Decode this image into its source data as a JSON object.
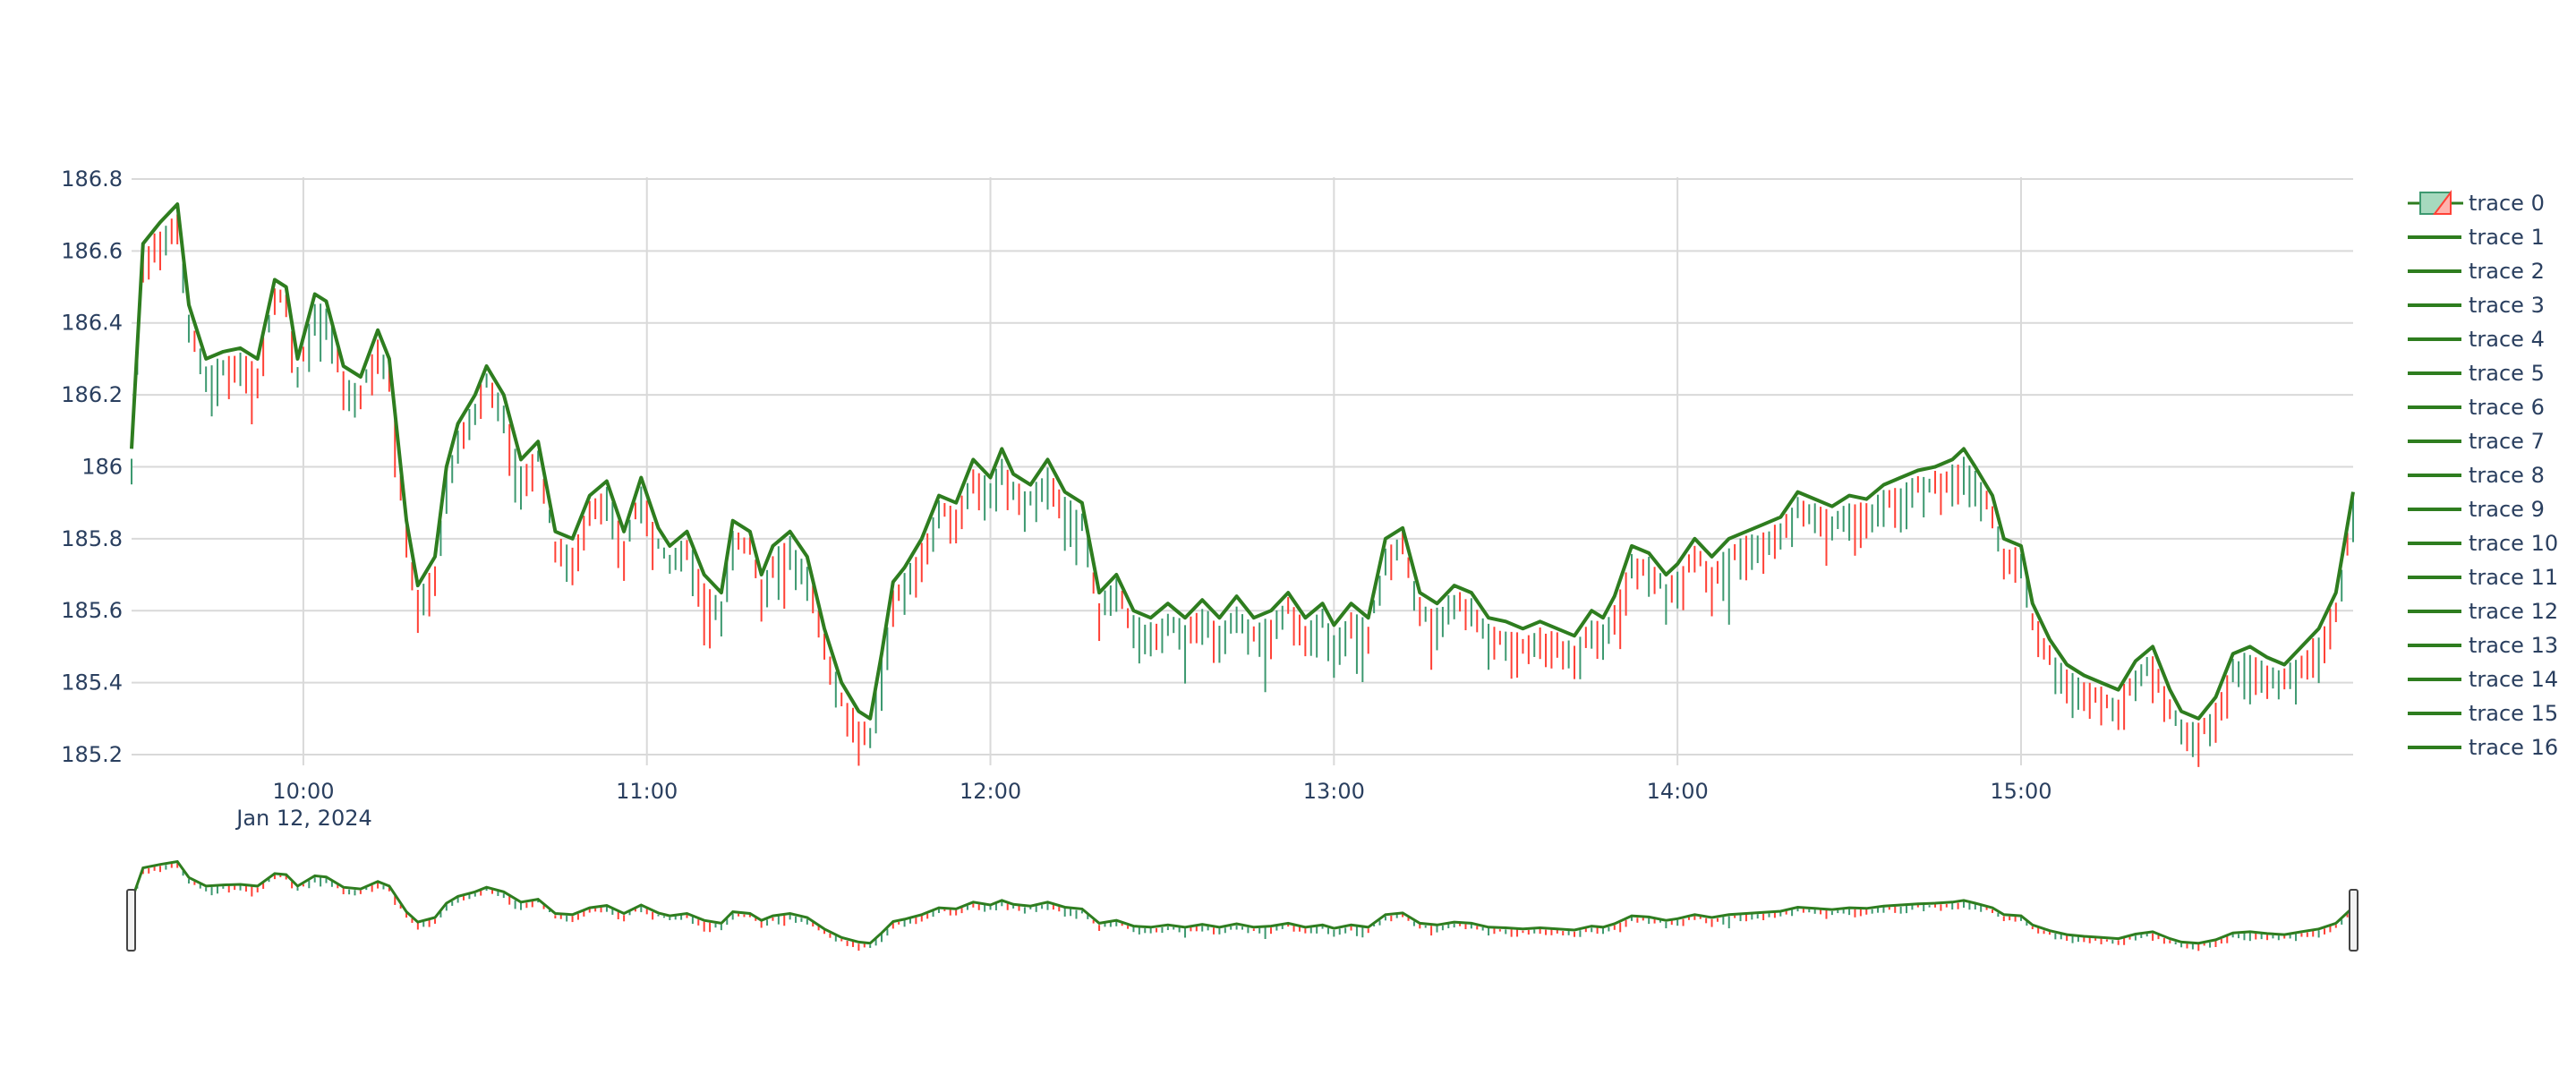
{
  "chart_data": {
    "type": "candlestick",
    "title": "",
    "xlabel": "",
    "ylabel": "",
    "date_label": "Jan 12, 2024",
    "x_range": [
      "09:30",
      "15:58"
    ],
    "ylim": [
      185.17,
      186.8
    ],
    "y_ticks": [
      {
        "value": 186.8,
        "label": "186.8"
      },
      {
        "value": 186.6,
        "label": "186.6"
      },
      {
        "value": 186.4,
        "label": "186.4"
      },
      {
        "value": 186.2,
        "label": "186.2"
      },
      {
        "value": 186.0,
        "label": "186"
      },
      {
        "value": 185.8,
        "label": "185.8"
      },
      {
        "value": 185.6,
        "label": "185.6"
      },
      {
        "value": 185.4,
        "label": "185.4"
      },
      {
        "value": 185.2,
        "label": "185.2"
      }
    ],
    "x_ticks": [
      "10:00",
      "11:00",
      "12:00",
      "13:00",
      "14:00",
      "15:00"
    ],
    "grid": true,
    "legend_position": "right",
    "rangeslider": true,
    "colors": {
      "increasing": "#3d9970",
      "decreasing": "#ff4136",
      "overlay": "#2e7d1f",
      "grid": "#d9d9d9"
    },
    "overlay_path": [
      [
        "09:30",
        186.05
      ],
      [
        "09:32",
        186.62
      ],
      [
        "09:35",
        186.68
      ],
      [
        "09:38",
        186.73
      ],
      [
        "09:40",
        186.45
      ],
      [
        "09:43",
        186.3
      ],
      [
        "09:46",
        186.32
      ],
      [
        "09:49",
        186.33
      ],
      [
        "09:52",
        186.3
      ],
      [
        "09:55",
        186.52
      ],
      [
        "09:57",
        186.5
      ],
      [
        "09:59",
        186.3
      ],
      [
        "10:02",
        186.48
      ],
      [
        "10:04",
        186.46
      ],
      [
        "10:07",
        186.28
      ],
      [
        "10:10",
        186.25
      ],
      [
        "10:13",
        186.38
      ],
      [
        "10:15",
        186.3
      ],
      [
        "10:18",
        185.85
      ],
      [
        "10:20",
        185.67
      ],
      [
        "10:23",
        185.75
      ],
      [
        "10:25",
        186.0
      ],
      [
        "10:27",
        186.12
      ],
      [
        "10:30",
        186.2
      ],
      [
        "10:32",
        186.28
      ],
      [
        "10:35",
        186.2
      ],
      [
        "10:38",
        186.02
      ],
      [
        "10:41",
        186.07
      ],
      [
        "10:44",
        185.82
      ],
      [
        "10:47",
        185.8
      ],
      [
        "10:50",
        185.92
      ],
      [
        "10:53",
        185.96
      ],
      [
        "10:56",
        185.82
      ],
      [
        "10:59",
        185.97
      ],
      [
        "11:02",
        185.83
      ],
      [
        "11:04",
        185.78
      ],
      [
        "11:07",
        185.82
      ],
      [
        "11:10",
        185.7
      ],
      [
        "11:13",
        185.65
      ],
      [
        "11:15",
        185.85
      ],
      [
        "11:18",
        185.82
      ],
      [
        "11:20",
        185.7
      ],
      [
        "11:22",
        185.78
      ],
      [
        "11:25",
        185.82
      ],
      [
        "11:28",
        185.75
      ],
      [
        "11:31",
        185.55
      ],
      [
        "11:34",
        185.4
      ],
      [
        "11:37",
        185.32
      ],
      [
        "11:39",
        185.3
      ],
      [
        "11:41",
        185.48
      ],
      [
        "11:43",
        185.68
      ],
      [
        "11:45",
        185.72
      ],
      [
        "11:48",
        185.8
      ],
      [
        "11:51",
        185.92
      ],
      [
        "11:54",
        185.9
      ],
      [
        "11:57",
        186.02
      ],
      [
        "12:00",
        185.97
      ],
      [
        "12:02",
        186.05
      ],
      [
        "12:04",
        185.98
      ],
      [
        "12:07",
        185.95
      ],
      [
        "12:10",
        186.02
      ],
      [
        "12:13",
        185.93
      ],
      [
        "12:16",
        185.9
      ],
      [
        "12:19",
        185.65
      ],
      [
        "12:22",
        185.7
      ],
      [
        "12:25",
        185.6
      ],
      [
        "12:28",
        185.58
      ],
      [
        "12:31",
        185.62
      ],
      [
        "12:34",
        185.58
      ],
      [
        "12:37",
        185.63
      ],
      [
        "12:40",
        185.58
      ],
      [
        "12:43",
        185.64
      ],
      [
        "12:46",
        185.58
      ],
      [
        "12:49",
        185.6
      ],
      [
        "12:52",
        185.65
      ],
      [
        "12:55",
        185.58
      ],
      [
        "12:58",
        185.62
      ],
      [
        "13:00",
        185.56
      ],
      [
        "13:03",
        185.62
      ],
      [
        "13:06",
        185.58
      ],
      [
        "13:09",
        185.8
      ],
      [
        "13:12",
        185.83
      ],
      [
        "13:15",
        185.65
      ],
      [
        "13:18",
        185.62
      ],
      [
        "13:21",
        185.67
      ],
      [
        "13:24",
        185.65
      ],
      [
        "13:27",
        185.58
      ],
      [
        "13:30",
        185.57
      ],
      [
        "13:33",
        185.55
      ],
      [
        "13:36",
        185.57
      ],
      [
        "13:39",
        185.55
      ],
      [
        "13:42",
        185.53
      ],
      [
        "13:45",
        185.6
      ],
      [
        "13:47",
        185.58
      ],
      [
        "13:49",
        185.64
      ],
      [
        "13:52",
        185.78
      ],
      [
        "13:55",
        185.76
      ],
      [
        "13:58",
        185.7
      ],
      [
        "14:00",
        185.73
      ],
      [
        "14:03",
        185.8
      ],
      [
        "14:06",
        185.75
      ],
      [
        "14:09",
        185.8
      ],
      [
        "14:12",
        185.82
      ],
      [
        "14:15",
        185.84
      ],
      [
        "14:18",
        185.86
      ],
      [
        "14:21",
        185.93
      ],
      [
        "14:24",
        185.91
      ],
      [
        "14:27",
        185.89
      ],
      [
        "14:30",
        185.92
      ],
      [
        "14:33",
        185.91
      ],
      [
        "14:36",
        185.95
      ],
      [
        "14:39",
        185.97
      ],
      [
        "14:42",
        185.99
      ],
      [
        "14:45",
        186.0
      ],
      [
        "14:48",
        186.02
      ],
      [
        "14:50",
        186.05
      ],
      [
        "14:52",
        186.0
      ],
      [
        "14:55",
        185.92
      ],
      [
        "14:57",
        185.8
      ],
      [
        "15:00",
        185.78
      ],
      [
        "15:02",
        185.62
      ],
      [
        "15:05",
        185.52
      ],
      [
        "15:08",
        185.45
      ],
      [
        "15:11",
        185.42
      ],
      [
        "15:14",
        185.4
      ],
      [
        "15:17",
        185.38
      ],
      [
        "15:20",
        185.46
      ],
      [
        "15:23",
        185.5
      ],
      [
        "15:26",
        185.38
      ],
      [
        "15:28",
        185.32
      ],
      [
        "15:31",
        185.3
      ],
      [
        "15:34",
        185.36
      ],
      [
        "15:37",
        185.48
      ],
      [
        "15:40",
        185.5
      ],
      [
        "15:43",
        185.47
      ],
      [
        "15:46",
        185.45
      ],
      [
        "15:49",
        185.5
      ],
      [
        "15:52",
        185.55
      ],
      [
        "15:55",
        185.65
      ],
      [
        "15:58",
        185.93
      ]
    ]
  },
  "legend": {
    "items": [
      {
        "label": "trace 0",
        "kind": "candle"
      },
      {
        "label": "trace 1",
        "kind": "line"
      },
      {
        "label": "trace 2",
        "kind": "line"
      },
      {
        "label": "trace 3",
        "kind": "line"
      },
      {
        "label": "trace 4",
        "kind": "line"
      },
      {
        "label": "trace 5",
        "kind": "line"
      },
      {
        "label": "trace 6",
        "kind": "line"
      },
      {
        "label": "trace 7",
        "kind": "line"
      },
      {
        "label": "trace 8",
        "kind": "line"
      },
      {
        "label": "trace 9",
        "kind": "line"
      },
      {
        "label": "trace 10",
        "kind": "line"
      },
      {
        "label": "trace 11",
        "kind": "line"
      },
      {
        "label": "trace 12",
        "kind": "line"
      },
      {
        "label": "trace 13",
        "kind": "line"
      },
      {
        "label": "trace 14",
        "kind": "line"
      },
      {
        "label": "trace 15",
        "kind": "line"
      },
      {
        "label": "trace 16",
        "kind": "line"
      }
    ]
  }
}
